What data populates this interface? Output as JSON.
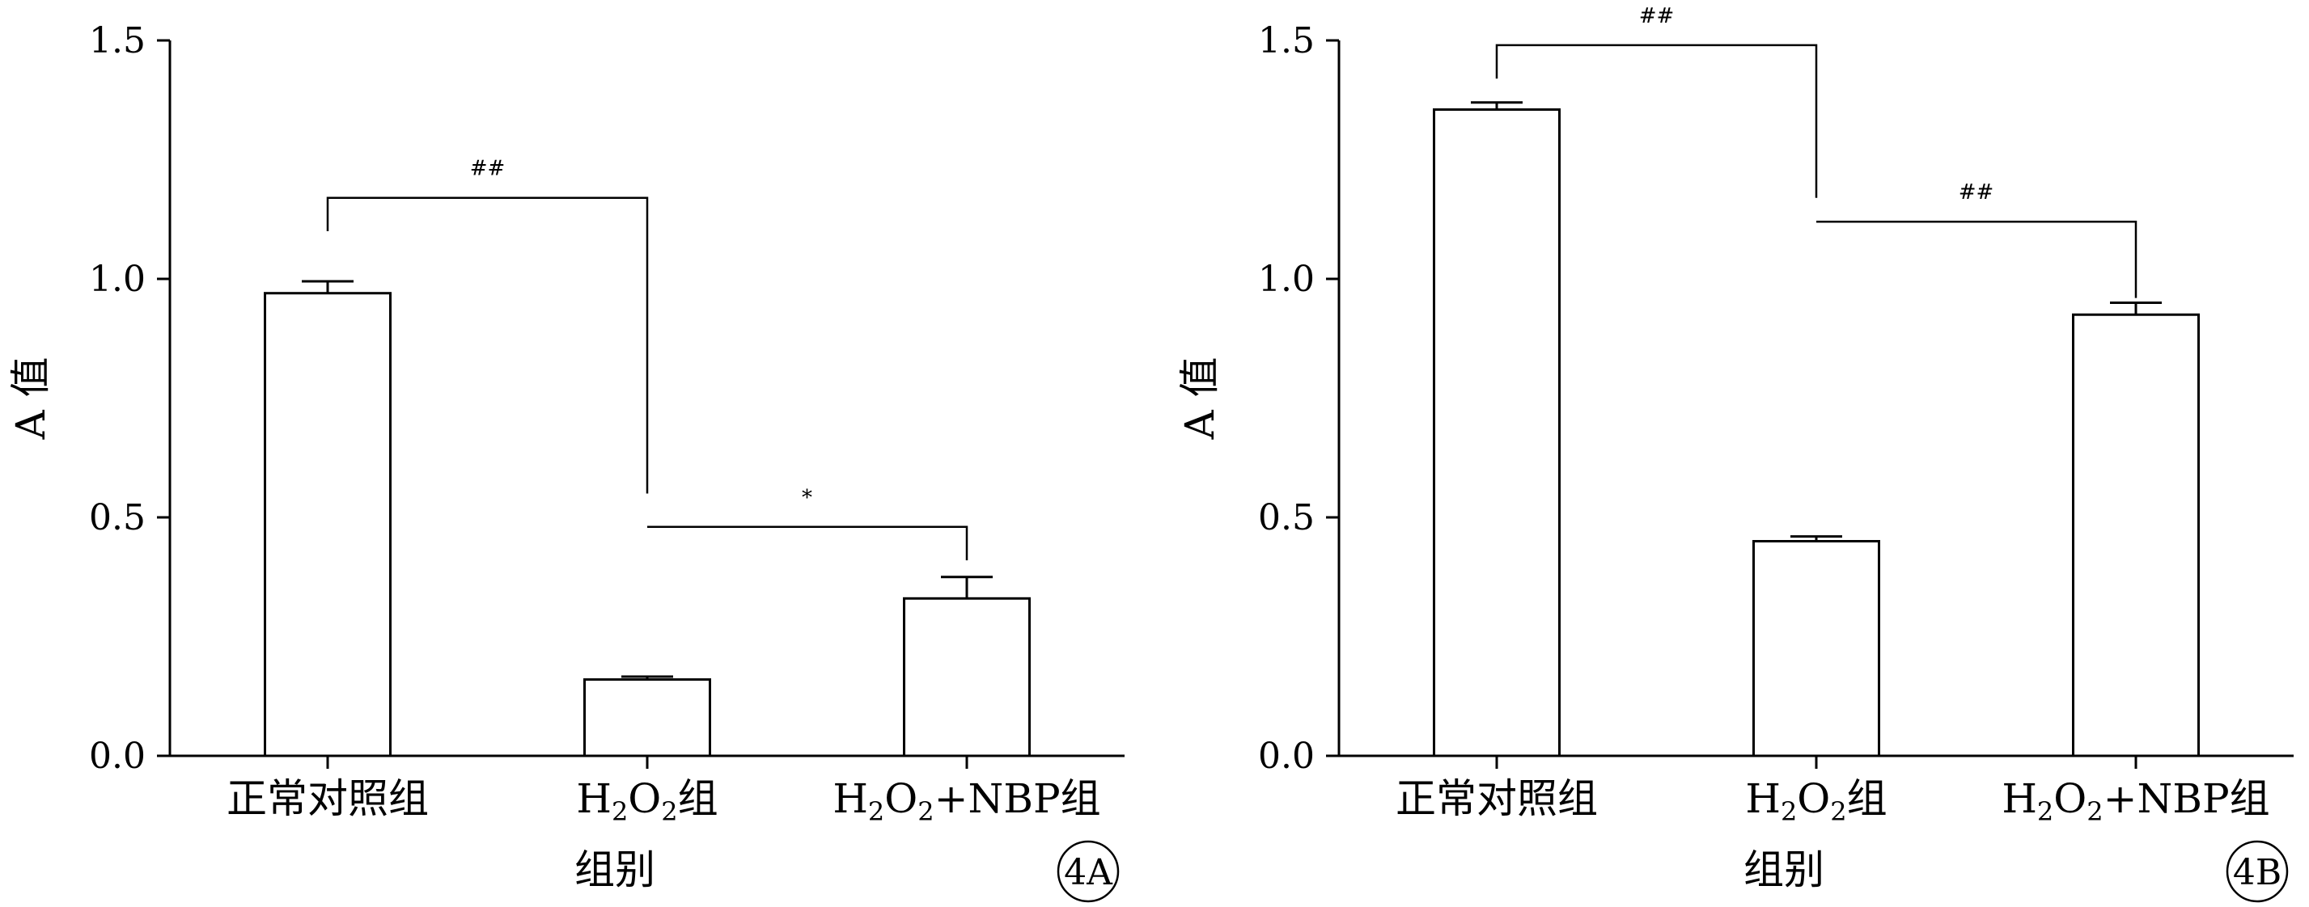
{
  "chart_data": [
    {
      "type": "bar",
      "panel_label": "4A",
      "categories": [
        "正常对照组",
        "H2O2组",
        "H2O2+NBP组"
      ],
      "values": [
        0.97,
        0.16,
        0.33
      ],
      "errors": [
        0.025,
        0.006,
        0.045
      ],
      "xlabel": "组别",
      "ylabel": "A 值",
      "ylim": [
        0,
        1.5
      ],
      "yticks": [
        "0.0",
        "0.5",
        "1.0",
        "1.5"
      ],
      "significance": [
        {
          "from": 0,
          "to": 1,
          "label": "##",
          "level": 1.17,
          "from_level": 1.1,
          "to_level": 0.55
        },
        {
          "from": 1,
          "to": 2,
          "label": "*",
          "level": 0.48,
          "from_level": 0.48,
          "to_level": 0.41
        }
      ],
      "grid": false
    },
    {
      "type": "bar",
      "panel_label": "4B",
      "categories": [
        "正常对照组",
        "H2O2组",
        "H2O2+NBP组"
      ],
      "values": [
        1.355,
        0.45,
        0.925
      ],
      "errors": [
        0.015,
        0.01,
        0.025
      ],
      "xlabel": "组别",
      "ylabel": "A 值",
      "ylim": [
        0,
        1.5
      ],
      "yticks": [
        "0.0",
        "0.5",
        "1.0",
        "1.5"
      ],
      "significance": [
        {
          "from": 0,
          "to": 1,
          "label": "##",
          "level": 1.49,
          "from_level": 1.42,
          "to_level": 1.17
        },
        {
          "from": 1,
          "to": 2,
          "label": "##",
          "level": 1.12,
          "from_level": 1.12,
          "to_level": 0.96
        }
      ],
      "grid": false
    }
  ]
}
